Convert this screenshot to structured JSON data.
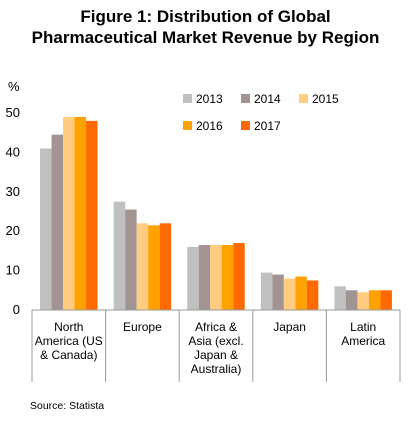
{
  "figure": {
    "title_line1": "Figure 1: Distribution of Global",
    "title_line2": "Pharmaceutical Market Revenue by Region",
    "source": "Source: Statista"
  },
  "chart_data": {
    "type": "bar",
    "title": "Figure 1: Distribution of Global Pharmaceutical Market Revenue by Region",
    "ylabel": "%",
    "xlabel": "",
    "ylim": [
      0,
      50
    ],
    "yticks": [
      0,
      10,
      20,
      30,
      40,
      50
    ],
    "grid": false,
    "legend_position": "top-right",
    "categories": [
      [
        "North",
        "America (US",
        "& Canada)"
      ],
      [
        "Europe"
      ],
      [
        "Africa &",
        "Asia (excl.",
        "Japan &",
        "Australia)"
      ],
      [
        "Japan"
      ],
      [
        "Latin",
        "America"
      ]
    ],
    "series": [
      {
        "name": "2013",
        "color": "#c0c0c0",
        "values": [
          41,
          27.5,
          16,
          9.5,
          6
        ]
      },
      {
        "name": "2014",
        "color": "#a39494",
        "values": [
          44.5,
          25.5,
          16.5,
          9,
          5
        ]
      },
      {
        "name": "2015",
        "color": "#ffcc80",
        "values": [
          49,
          22,
          16.5,
          8,
          4.5
        ]
      },
      {
        "name": "2016",
        "color": "#ffa200",
        "values": [
          49,
          21.5,
          16.5,
          8.5,
          5
        ]
      },
      {
        "name": "2017",
        "color": "#ff6a00",
        "values": [
          48,
          22,
          17,
          7.5,
          5
        ]
      }
    ]
  }
}
